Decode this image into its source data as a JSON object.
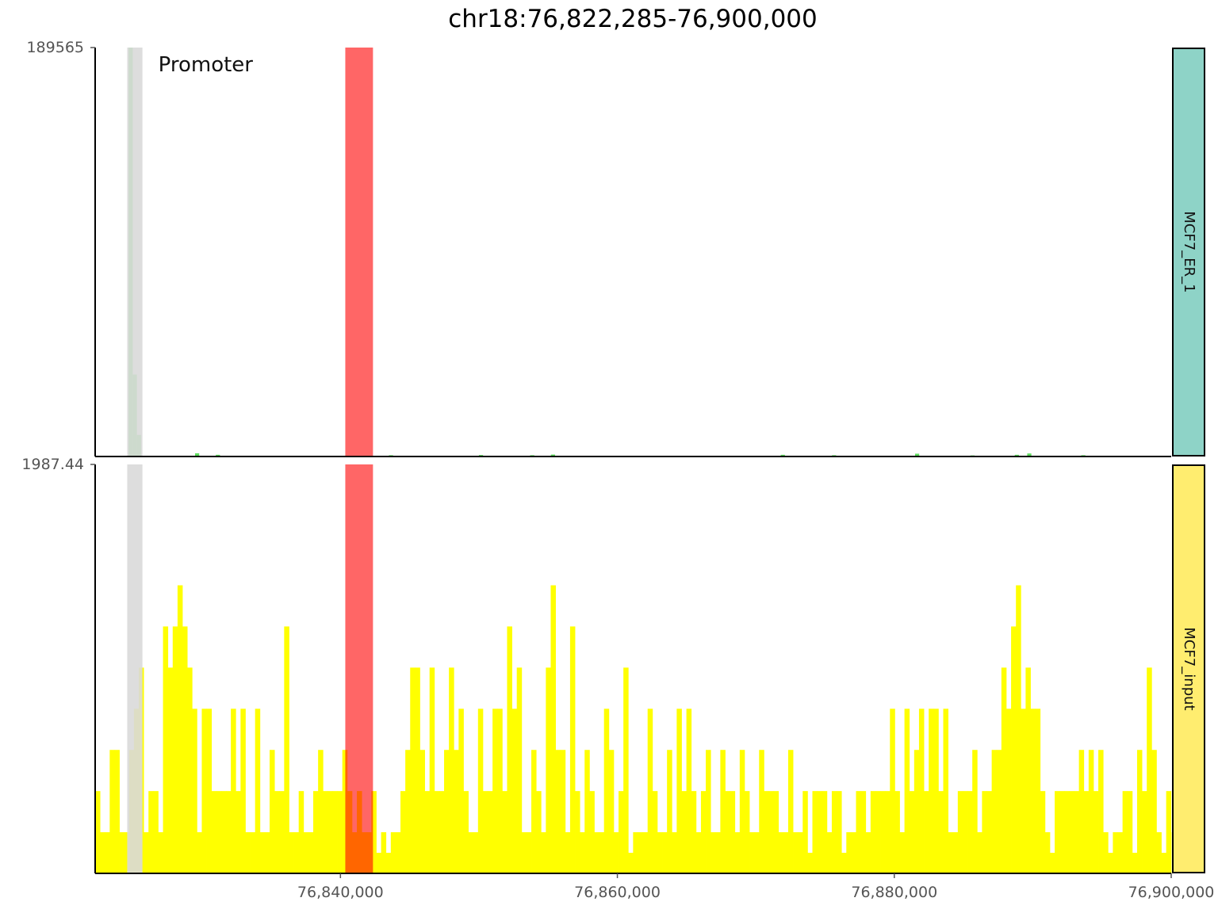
{
  "chart_data": {
    "type": "bar",
    "title": "chr18:76,822,285-76,900,000",
    "xlim": [
      76822285,
      76900000
    ],
    "x_ticks": [
      76840000,
      76860000,
      76880000,
      76900000
    ],
    "x_tick_labels": [
      "76,840,000",
      "76,860,000",
      "76,880,000",
      "76,900,000"
    ],
    "highlights": [
      {
        "label": "Promoter",
        "start": 76824600,
        "end": 76825700,
        "color": "#d9d9d9"
      },
      {
        "label": "",
        "start": 76840350,
        "end": 76842350,
        "color": "#ff6666"
      }
    ],
    "tracks": [
      {
        "name": "MCF7_ER_1",
        "ylim": [
          0,
          189565
        ],
        "y_max_label": "189565",
        "bar_color": "#5ddc5d",
        "strip_color": "#8ed3c7",
        "bins": [
          {
            "x": 76824700,
            "y": 189565
          },
          {
            "x": 76825000,
            "y": 38000
          },
          {
            "x": 76825300,
            "y": 10000
          },
          {
            "x": 76829500,
            "y": 1500
          },
          {
            "x": 76831000,
            "y": 800
          },
          {
            "x": 76843500,
            "y": 600
          },
          {
            "x": 76850000,
            "y": 700
          },
          {
            "x": 76853700,
            "y": 600
          },
          {
            "x": 76855200,
            "y": 900
          },
          {
            "x": 76871800,
            "y": 800
          },
          {
            "x": 76875500,
            "y": 600
          },
          {
            "x": 76881500,
            "y": 1300
          },
          {
            "x": 76885500,
            "y": 500
          },
          {
            "x": 76888700,
            "y": 800
          },
          {
            "x": 76889600,
            "y": 1400
          },
          {
            "x": 76893500,
            "y": 600
          }
        ]
      },
      {
        "name": "MCF7_input",
        "ylim": [
          0,
          1987.44
        ],
        "y_max_label": "1987.44",
        "bar_color": "#ffff00",
        "strip_color": "#ffed6f",
        "bins_start": 76822285,
        "bin_width": 350,
        "values": [
          400,
          200,
          200,
          600,
          600,
          200,
          200,
          600,
          800,
          1000,
          200,
          400,
          400,
          200,
          1200,
          1000,
          1200,
          1400,
          1200,
          1000,
          800,
          200,
          800,
          800,
          400,
          400,
          400,
          400,
          800,
          400,
          800,
          200,
          200,
          800,
          200,
          200,
          600,
          400,
          400,
          1200,
          200,
          200,
          400,
          200,
          200,
          400,
          600,
          400,
          400,
          400,
          400,
          600,
          400,
          200,
          400,
          200,
          200,
          400,
          100,
          200,
          100,
          200,
          200,
          400,
          600,
          1000,
          1000,
          600,
          400,
          1000,
          400,
          400,
          600,
          1000,
          600,
          800,
          400,
          200,
          200,
          800,
          400,
          400,
          800,
          800,
          400,
          1200,
          800,
          1000,
          200,
          200,
          600,
          400,
          200,
          1000,
          1400,
          600,
          600,
          200,
          1200,
          400,
          200,
          600,
          400,
          200,
          200,
          800,
          600,
          200,
          400,
          1000,
          100,
          200,
          200,
          200,
          800,
          400,
          200,
          200,
          600,
          200,
          800,
          400,
          800,
          400,
          200,
          400,
          600,
          200,
          200,
          600,
          400,
          400,
          200,
          600,
          400,
          200,
          200,
          600,
          400,
          400,
          400,
          200,
          200,
          600,
          200,
          200,
          400,
          100,
          400,
          400,
          400,
          200,
          400,
          400,
          100,
          200,
          200,
          400,
          400,
          200,
          400,
          400,
          400,
          400,
          800,
          400,
          200,
          800,
          400,
          600,
          800,
          400,
          800,
          800,
          400,
          800,
          200,
          200,
          400,
          400,
          400,
          600,
          200,
          400,
          400,
          600,
          600,
          1000,
          800,
          1200,
          1400,
          800,
          1000,
          800,
          800,
          400,
          200,
          100,
          400,
          400,
          400,
          400,
          400,
          600,
          400,
          600,
          400,
          600,
          200,
          100,
          200,
          200,
          400,
          400,
          100,
          600,
          400,
          1000,
          600,
          200,
          100,
          400,
          200,
          600,
          200,
          600,
          400,
          600,
          200,
          100,
          800,
          400,
          200,
          400,
          600,
          200,
          200,
          600,
          400,
          200,
          400,
          200,
          800,
          100,
          100,
          400,
          200,
          100,
          200,
          200,
          100,
          200,
          800,
          400,
          400,
          600,
          600,
          400,
          200,
          100,
          400,
          400,
          800,
          800,
          400,
          600,
          400,
          400,
          400,
          100,
          100,
          400,
          400,
          400,
          200,
          100,
          800,
          600,
          400,
          100,
          200,
          400,
          400,
          600,
          800,
          400,
          600,
          200,
          800,
          200,
          1200,
          1200,
          800,
          400,
          1000,
          400,
          800,
          600,
          400,
          400,
          400,
          200,
          200,
          200,
          100,
          400,
          800,
          400,
          600,
          600,
          400,
          400,
          400,
          400,
          400,
          800,
          1000,
          800,
          400,
          600,
          200,
          200,
          400,
          400,
          800,
          800,
          400
        ]
      }
    ]
  }
}
